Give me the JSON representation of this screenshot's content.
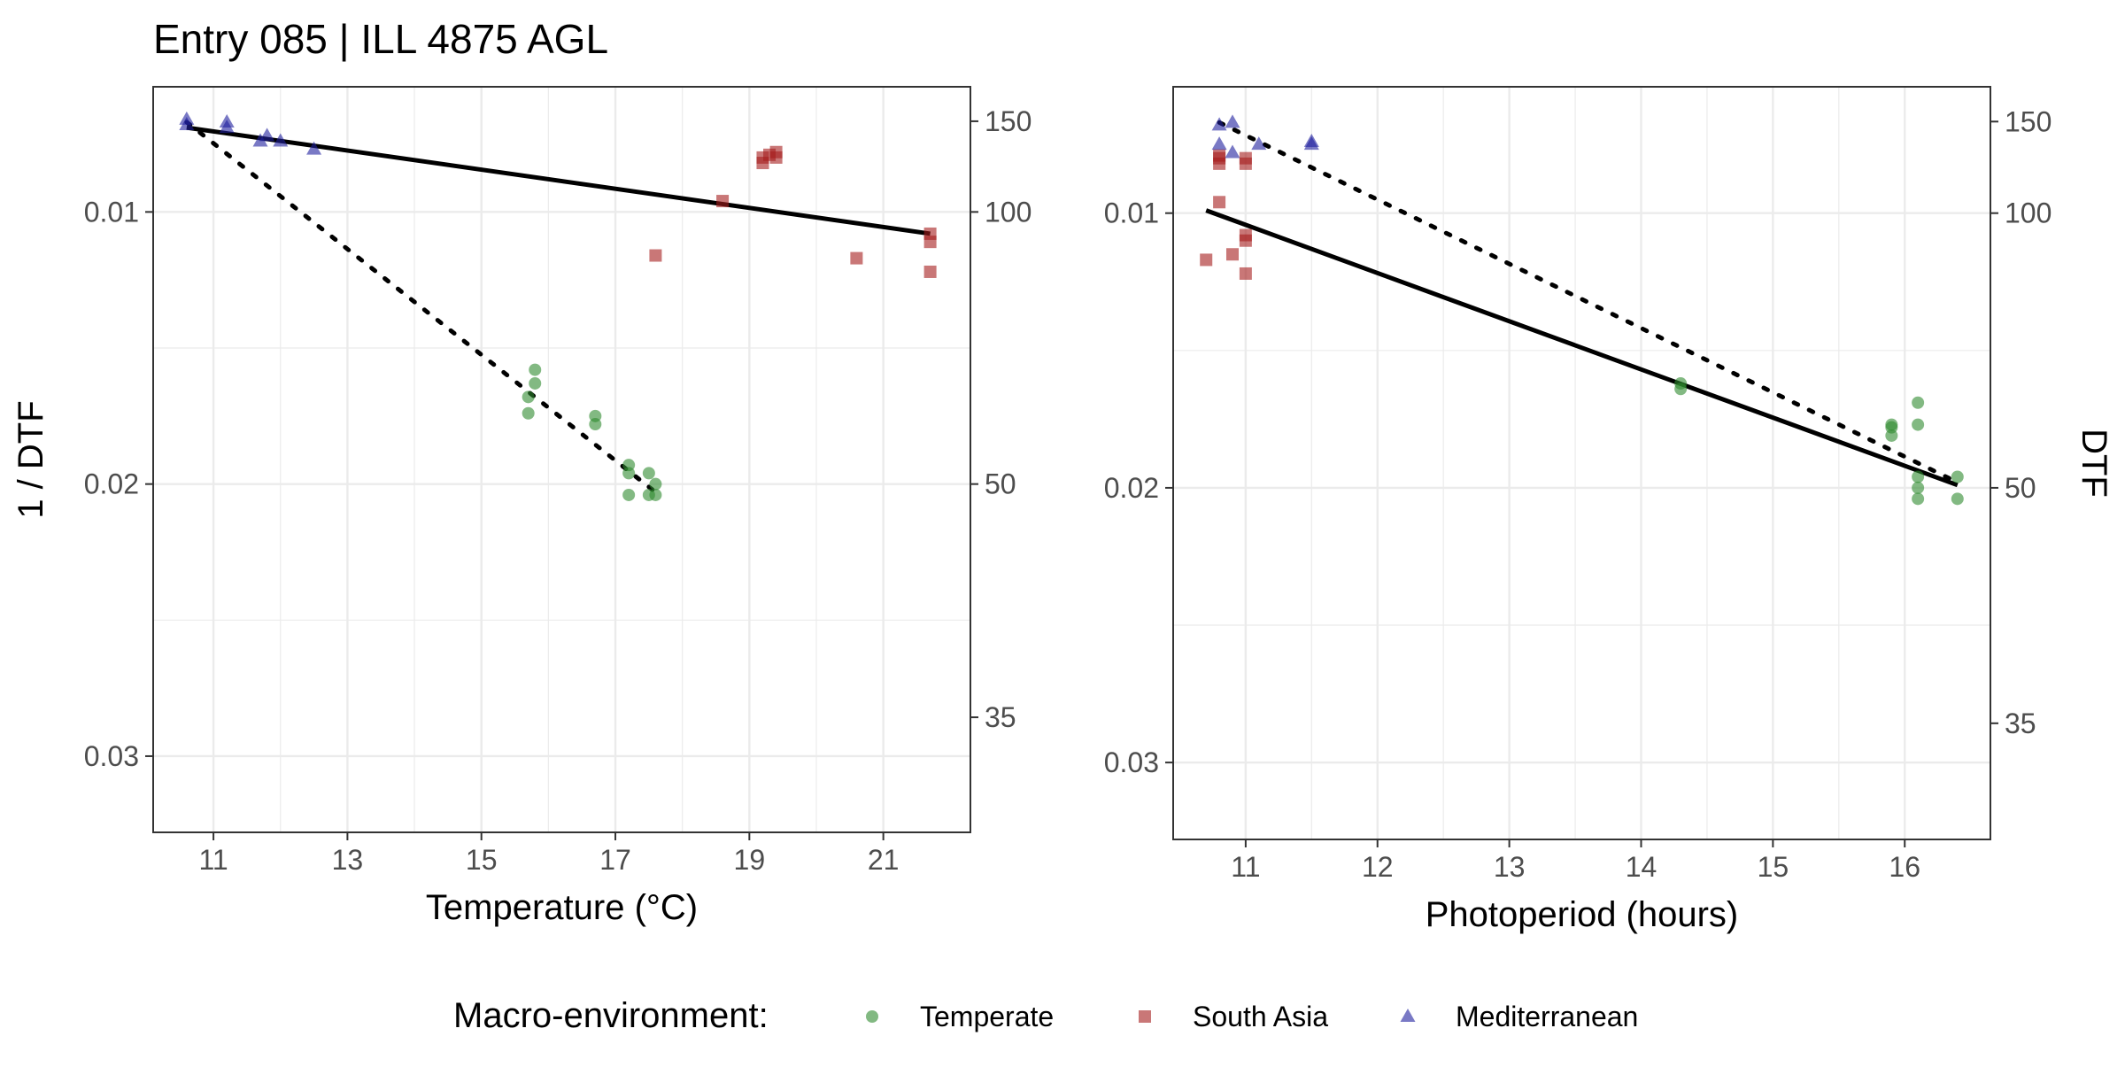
{
  "title": "Entry 085 | ILL 4875 AGL",
  "legend": {
    "title": "Macro-environment:",
    "position": "bottom",
    "items": [
      {
        "label": "Temperate",
        "shape": "circle",
        "color": "#2e8b2e"
      },
      {
        "label": "South Asia",
        "shape": "square",
        "color": "#a51c1c"
      },
      {
        "label": "Mediterranean",
        "shape": "triangle",
        "color": "#1f1f9e"
      }
    ]
  },
  "colors": {
    "temperate": "#2e8b2e",
    "south_asia": "#a51c1c",
    "mediterranean": "#1f1f9e",
    "gridline": "#ebebeb",
    "fit_line": "#000000"
  },
  "chart_data": [
    {
      "type": "scatter",
      "xlabel": "Temperature (°C)",
      "ylabel": "1 / DTF",
      "y2label": "",
      "xlim": [
        10.1,
        22.3
      ],
      "ylim": [
        0.0328,
        0.0054
      ],
      "y_reversed": true,
      "x_ticks": [
        11,
        13,
        15,
        17,
        19,
        21
      ],
      "y_ticks": [
        0.01,
        0.02,
        0.03
      ],
      "y_tick_labels": [
        "0.01",
        "0.02",
        "0.03"
      ],
      "y2_ticks": [
        150,
        100,
        50,
        35
      ],
      "grid": true,
      "series": [
        {
          "name": "Temperate",
          "shape": "circle",
          "points": [
            [
              15.7,
              0.0168
            ],
            [
              15.8,
              0.0163
            ],
            [
              15.8,
              0.0158
            ],
            [
              15.7,
              0.0174
            ],
            [
              16.7,
              0.0175
            ],
            [
              16.7,
              0.0178
            ],
            [
              17.2,
              0.0193
            ],
            [
              17.2,
              0.0196
            ],
            [
              17.2,
              0.0204
            ],
            [
              17.5,
              0.0196
            ],
            [
              17.5,
              0.0204
            ],
            [
              17.6,
              0.02
            ],
            [
              17.6,
              0.0204
            ]
          ]
        },
        {
          "name": "South Asia",
          "shape": "square",
          "points": [
            [
              19.2,
              0.008
            ],
            [
              19.3,
              0.0079
            ],
            [
              19.4,
              0.0078
            ],
            [
              19.2,
              0.0082
            ],
            [
              19.4,
              0.008
            ],
            [
              18.6,
              0.0096
            ],
            [
              17.6,
              0.0116
            ],
            [
              20.6,
              0.0117
            ],
            [
              21.7,
              0.0108
            ],
            [
              21.7,
              0.0111
            ],
            [
              21.7,
              0.0122
            ]
          ]
        },
        {
          "name": "Mediterranean",
          "shape": "triangle",
          "points": [
            [
              10.6,
              0.0066
            ],
            [
              10.6,
              0.0068
            ],
            [
              11.2,
              0.0069
            ],
            [
              11.2,
              0.0067
            ],
            [
              11.7,
              0.0074
            ],
            [
              11.8,
              0.0072
            ],
            [
              12.0,
              0.0074
            ],
            [
              12.5,
              0.0077
            ]
          ]
        }
      ],
      "fit_lines": [
        {
          "style": "solid",
          "from": [
            10.6,
            0.0069
          ],
          "to": [
            21.7,
            0.0108
          ]
        },
        {
          "style": "dotted",
          "from": [
            10.6,
            0.0067
          ],
          "to": [
            17.6,
            0.0203
          ]
        }
      ]
    },
    {
      "type": "scatter",
      "xlabel": "Photoperiod (hours)",
      "ylabel": "",
      "y2label": "DTF",
      "xlim": [
        10.45,
        16.65
      ],
      "ylim": [
        0.0328,
        0.0054
      ],
      "y_reversed": true,
      "x_ticks": [
        11,
        12,
        13,
        14,
        15,
        16
      ],
      "y_ticks": [
        0.01,
        0.02,
        0.03
      ],
      "y_tick_labels": [
        "0.01",
        "0.02",
        "0.03"
      ],
      "y2_ticks": [
        150,
        100,
        50,
        35
      ],
      "grid": true,
      "series": [
        {
          "name": "Temperate",
          "shape": "circle",
          "points": [
            [
              14.3,
              0.0162
            ],
            [
              14.3,
              0.0164
            ],
            [
              15.9,
              0.0177
            ],
            [
              15.9,
              0.0181
            ],
            [
              15.9,
              0.0178
            ],
            [
              16.1,
              0.0169
            ],
            [
              16.1,
              0.0177
            ],
            [
              16.1,
              0.0196
            ],
            [
              16.1,
              0.02
            ],
            [
              16.1,
              0.0204
            ],
            [
              16.4,
              0.0196
            ],
            [
              16.4,
              0.0204
            ]
          ]
        },
        {
          "name": "South Asia",
          "shape": "square",
          "points": [
            [
              10.7,
              0.0117
            ],
            [
              10.8,
              0.0096
            ],
            [
              10.8,
              0.008
            ],
            [
              10.8,
              0.0082
            ],
            [
              10.8,
              0.0079
            ],
            [
              10.9,
              0.0115
            ],
            [
              11.0,
              0.0108
            ],
            [
              11.0,
              0.011
            ],
            [
              11.0,
              0.0122
            ],
            [
              11.0,
              0.008
            ],
            [
              11.0,
              0.0082
            ]
          ]
        },
        {
          "name": "Mediterranean",
          "shape": "triangle",
          "points": [
            [
              10.8,
              0.0068
            ],
            [
              10.8,
              0.0075
            ],
            [
              10.9,
              0.0067
            ],
            [
              10.9,
              0.0078
            ],
            [
              11.1,
              0.0075
            ],
            [
              11.5,
              0.0074
            ],
            [
              11.5,
              0.0075
            ]
          ]
        }
      ],
      "fit_lines": [
        {
          "style": "solid",
          "from": [
            10.7,
            0.0099
          ],
          "to": [
            16.4,
            0.0199
          ]
        },
        {
          "style": "dotted",
          "from": [
            10.8,
            0.0067
          ],
          "to": [
            16.4,
            0.0198
          ]
        }
      ]
    }
  ]
}
